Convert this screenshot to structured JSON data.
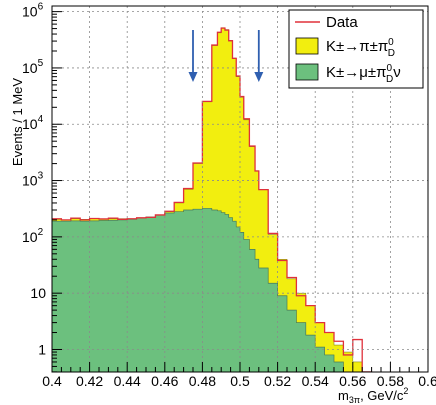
{
  "chart_data": {
    "type": "area",
    "xlabel": "m",
    "xlabel_subscript": "3π",
    "xlabel_unit": ", GeV/c",
    "xlabel_unit_sup": "2",
    "ylabel": "Events / 1 MeV",
    "xlim": [
      0.4,
      0.6
    ],
    "ylim_log10": [
      -0.4,
      6.1
    ],
    "log_y": true,
    "grid": true,
    "legend_position": "top-right",
    "x_ticks": [
      {
        "value": 0.4,
        "label": "0.4"
      },
      {
        "value": 0.42,
        "label": "0.42"
      },
      {
        "value": 0.44,
        "label": "0.44"
      },
      {
        "value": 0.46,
        "label": "0.46"
      },
      {
        "value": 0.48,
        "label": "0.48"
      },
      {
        "value": 0.5,
        "label": "0.5"
      },
      {
        "value": 0.52,
        "label": "0.52"
      },
      {
        "value": 0.54,
        "label": "0.54"
      },
      {
        "value": 0.56,
        "label": "0.56"
      },
      {
        "value": 0.58,
        "label": "0.58"
      },
      {
        "value": 0.6,
        "label": "0.6"
      }
    ],
    "y_ticks": [
      {
        "exp": 0,
        "label": "1",
        "sup": ""
      },
      {
        "exp": 1,
        "label": "10",
        "sup": ""
      },
      {
        "exp": 2,
        "label": "10",
        "sup": "2"
      },
      {
        "exp": 3,
        "label": "10",
        "sup": "3"
      },
      {
        "exp": 4,
        "label": "10",
        "sup": "4"
      },
      {
        "exp": 5,
        "label": "10",
        "sup": "5"
      },
      {
        "exp": 6,
        "label": "10",
        "sup": "6"
      }
    ],
    "arrows_x": [
      0.475,
      0.51
    ],
    "legend": [
      {
        "name": "Data",
        "style": "line",
        "color": "#e0303a"
      },
      {
        "name": "K±→π±π",
        "sup": "0",
        "sub": "D",
        "tail": "",
        "style": "fill",
        "color": "#f2ee0f"
      },
      {
        "name": "K±→μ±π",
        "sup": "0",
        "sub": "D",
        "tail": "ν",
        "style": "fill",
        "color": "#6cc07e"
      }
    ],
    "series": {
      "x": [
        0.4,
        0.405,
        0.41,
        0.415,
        0.42,
        0.425,
        0.43,
        0.435,
        0.44,
        0.445,
        0.45,
        0.455,
        0.46,
        0.465,
        0.47,
        0.475,
        0.48,
        0.485,
        0.488,
        0.49,
        0.492,
        0.494,
        0.496,
        0.498,
        0.5,
        0.502,
        0.505,
        0.508,
        0.51,
        0.515,
        0.52,
        0.525,
        0.53,
        0.535,
        0.54,
        0.545,
        0.55,
        0.555,
        0.56,
        0.565,
        0.57,
        0.58,
        0.59,
        0.6
      ],
      "total": [
        205,
        200,
        210,
        205,
        210,
        205,
        210,
        210,
        205,
        215,
        225,
        240,
        280,
        400,
        700,
        2000,
        25000,
        250000,
        420000,
        520000,
        480000,
        300000,
        150000,
        70000,
        30000,
        12000,
        4000,
        1500,
        700,
        110,
        40,
        18,
        10,
        6,
        3,
        2,
        1.2,
        0.9,
        0.6,
        0.3,
        0.2,
        0.2,
        0.2,
        0.2
      ],
      "muon_background": [
        190,
        190,
        192,
        190,
        192,
        195,
        197,
        200,
        205,
        215,
        225,
        245,
        265,
        280,
        300,
        310,
        320,
        300,
        290,
        270,
        250,
        220,
        190,
        150,
        120,
        90,
        60,
        40,
        28,
        15,
        9,
        5,
        3,
        1.8,
        1.1,
        0.8,
        0.6,
        0.4,
        0.3,
        0.2,
        0.2,
        0.2,
        0.2,
        0.2
      ],
      "data": [
        210,
        200,
        215,
        200,
        212,
        208,
        215,
        205,
        210,
        218,
        222,
        245,
        285,
        410,
        720,
        2050,
        25500,
        255000,
        430000,
        510000,
        470000,
        305000,
        148000,
        72000,
        31000,
        12500,
        4100,
        1480,
        690,
        115,
        38,
        19,
        9,
        6,
        3,
        2,
        1.4,
        0.8,
        1.5,
        0.4,
        0.2,
        0.2,
        0.2,
        0.2
      ]
    }
  }
}
